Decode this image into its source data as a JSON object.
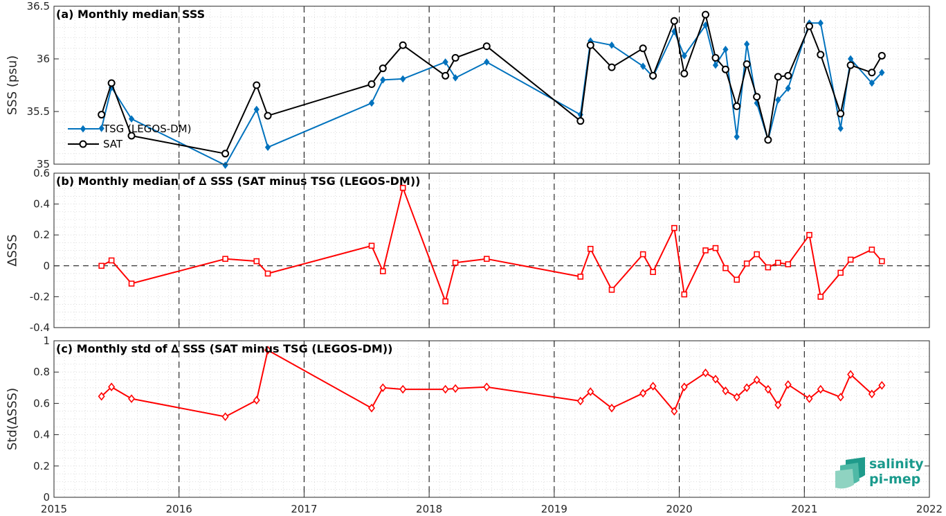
{
  "chart_data": [
    {
      "type": "line",
      "title": "(a) Monthly median SSS",
      "ylabel": "SSS (psu)",
      "xlim": [
        2015,
        2022
      ],
      "ylim": [
        35,
        36.5
      ],
      "yticks": [
        35,
        35.5,
        36,
        36.5
      ],
      "ytick_labels": [
        "35",
        "35.5",
        "36",
        "36.5"
      ],
      "grid": "dotted minor",
      "legend_position": "left",
      "series": [
        {
          "name": "TSG (LEGOS-DM)",
          "color": "#0072BD",
          "marker": "diamond-filled",
          "points": [
            [
              2015.38,
              35.34
            ],
            [
              2015.46,
              35.73
            ],
            [
              2015.62,
              35.43
            ],
            [
              2016.37,
              34.99
            ],
            [
              2016.62,
              35.52
            ],
            [
              2016.71,
              35.16
            ],
            [
              2017.54,
              35.58
            ],
            [
              2017.63,
              35.8
            ],
            [
              2017.79,
              35.81
            ],
            [
              2018.13,
              35.97
            ],
            [
              2018.21,
              35.82
            ],
            [
              2018.46,
              35.97
            ],
            [
              2019.21,
              35.47
            ],
            [
              2019.29,
              36.17
            ],
            [
              2019.46,
              36.13
            ],
            [
              2019.71,
              35.93
            ],
            [
              2019.79,
              35.83
            ],
            [
              2019.96,
              36.26
            ],
            [
              2020.04,
              36.03
            ],
            [
              2020.21,
              36.32
            ],
            [
              2020.29,
              35.94
            ],
            [
              2020.37,
              36.09
            ],
            [
              2020.46,
              35.26
            ],
            [
              2020.54,
              36.14
            ],
            [
              2020.62,
              35.58
            ],
            [
              2020.71,
              35.23
            ],
            [
              2020.79,
              35.61
            ],
            [
              2020.87,
              35.72
            ],
            [
              2021.04,
              36.34
            ],
            [
              2021.13,
              36.34
            ],
            [
              2021.29,
              35.34
            ],
            [
              2021.37,
              36.0
            ],
            [
              2021.54,
              35.77
            ],
            [
              2021.62,
              35.87
            ]
          ]
        },
        {
          "name": "SAT",
          "color": "#000000",
          "marker": "circle-open",
          "points": [
            [
              2015.38,
              35.47
            ],
            [
              2015.46,
              35.77
            ],
            [
              2015.62,
              35.27
            ],
            [
              2016.37,
              35.1
            ],
            [
              2016.62,
              35.75
            ],
            [
              2016.71,
              35.46
            ],
            [
              2017.54,
              35.76
            ],
            [
              2017.63,
              35.91
            ],
            [
              2017.79,
              36.13
            ],
            [
              2018.13,
              35.84
            ],
            [
              2018.21,
              36.01
            ],
            [
              2018.46,
              36.12
            ],
            [
              2019.21,
              35.41
            ],
            [
              2019.29,
              36.13
            ],
            [
              2019.46,
              35.92
            ],
            [
              2019.71,
              36.1
            ],
            [
              2019.79,
              35.84
            ],
            [
              2019.96,
              36.36
            ],
            [
              2020.04,
              35.86
            ],
            [
              2020.21,
              36.42
            ],
            [
              2020.29,
              36.01
            ],
            [
              2020.37,
              35.9
            ],
            [
              2020.46,
              35.55
            ],
            [
              2020.54,
              35.95
            ],
            [
              2020.62,
              35.64
            ],
            [
              2020.71,
              35.23
            ],
            [
              2020.79,
              35.83
            ],
            [
              2020.87,
              35.84
            ],
            [
              2021.04,
              36.31
            ],
            [
              2021.13,
              36.04
            ],
            [
              2021.29,
              35.48
            ],
            [
              2021.37,
              35.94
            ],
            [
              2021.54,
              35.87
            ],
            [
              2021.62,
              36.03
            ]
          ]
        }
      ]
    },
    {
      "type": "line",
      "title": "(b) Monthly median of ∆ SSS (SAT minus TSG (LEGOS-DM))",
      "ylabel": "∆SSS",
      "xlim": [
        2015,
        2022
      ],
      "ylim": [
        -0.4,
        0.6
      ],
      "yticks": [
        -0.4,
        -0.2,
        0,
        0.2,
        0.4,
        0.6
      ],
      "ytick_labels": [
        "-0.4",
        "-0.2",
        "0",
        "0.2",
        "0.4",
        "0.6"
      ],
      "grid": "dotted minor",
      "zero_line": "dashed",
      "series": [
        {
          "color": "#FF0000",
          "marker": "square-open",
          "points": [
            [
              2015.38,
              0.0
            ],
            [
              2015.46,
              0.035
            ],
            [
              2015.62,
              -0.115
            ],
            [
              2016.37,
              0.045
            ],
            [
              2016.62,
              0.03
            ],
            [
              2016.71,
              -0.05
            ],
            [
              2017.54,
              0.13
            ],
            [
              2017.63,
              -0.035
            ],
            [
              2017.79,
              0.505
            ],
            [
              2018.13,
              -0.23
            ],
            [
              2018.21,
              0.02
            ],
            [
              2018.46,
              0.045
            ],
            [
              2019.21,
              -0.07
            ],
            [
              2019.29,
              0.11
            ],
            [
              2019.46,
              -0.155
            ],
            [
              2019.71,
              0.075
            ],
            [
              2019.79,
              -0.04
            ],
            [
              2019.96,
              0.245
            ],
            [
              2020.04,
              -0.185
            ],
            [
              2020.21,
              0.1
            ],
            [
              2020.29,
              0.115
            ],
            [
              2020.37,
              -0.015
            ],
            [
              2020.46,
              -0.09
            ],
            [
              2020.54,
              0.015
            ],
            [
              2020.62,
              0.075
            ],
            [
              2020.71,
              -0.01
            ],
            [
              2020.79,
              0.02
            ],
            [
              2020.87,
              0.01
            ],
            [
              2021.04,
              0.2
            ],
            [
              2021.13,
              -0.2
            ],
            [
              2021.29,
              -0.045
            ],
            [
              2021.37,
              0.04
            ],
            [
              2021.54,
              0.105
            ],
            [
              2021.62,
              0.03
            ]
          ]
        }
      ]
    },
    {
      "type": "line",
      "title": "(c) Monthly std of ∆ SSS (SAT minus TSG (LEGOS-DM))",
      "ylabel": "Std(∆SSS)",
      "xlabel": "",
      "xlim": [
        2015,
        2022
      ],
      "xticks": [
        2015,
        2016,
        2017,
        2018,
        2019,
        2020,
        2021,
        2022
      ],
      "xtick_labels": [
        "2015",
        "2016",
        "2017",
        "2018",
        "2019",
        "2020",
        "2021",
        "2022"
      ],
      "ylim": [
        0,
        1
      ],
      "yticks": [
        0,
        0.2,
        0.4,
        0.6,
        0.8,
        1
      ],
      "ytick_labels": [
        "0",
        "0.2",
        "0.4",
        "0.6",
        "0.8",
        "1"
      ],
      "grid": "dotted minor",
      "series": [
        {
          "color": "#FF0000",
          "marker": "diamond-open",
          "points": [
            [
              2015.38,
              0.645
            ],
            [
              2015.46,
              0.705
            ],
            [
              2015.62,
              0.63
            ],
            [
              2016.37,
              0.515
            ],
            [
              2016.62,
              0.62
            ],
            [
              2016.71,
              0.94
            ],
            [
              2017.54,
              0.57
            ],
            [
              2017.63,
              0.7
            ],
            [
              2017.79,
              0.69
            ],
            [
              2018.13,
              0.69
            ],
            [
              2018.21,
              0.695
            ],
            [
              2018.46,
              0.705
            ],
            [
              2019.21,
              0.615
            ],
            [
              2019.29,
              0.675
            ],
            [
              2019.46,
              0.57
            ],
            [
              2019.71,
              0.665
            ],
            [
              2019.79,
              0.71
            ],
            [
              2019.96,
              0.55
            ],
            [
              2020.04,
              0.705
            ],
            [
              2020.21,
              0.795
            ],
            [
              2020.29,
              0.755
            ],
            [
              2020.37,
              0.68
            ],
            [
              2020.46,
              0.64
            ],
            [
              2020.54,
              0.7
            ],
            [
              2020.62,
              0.75
            ],
            [
              2020.71,
              0.69
            ],
            [
              2020.79,
              0.59
            ],
            [
              2020.87,
              0.72
            ],
            [
              2021.04,
              0.63
            ],
            [
              2021.13,
              0.69
            ],
            [
              2021.29,
              0.64
            ],
            [
              2021.37,
              0.785
            ],
            [
              2021.54,
              0.66
            ],
            [
              2021.62,
              0.715
            ]
          ]
        }
      ]
    }
  ],
  "logo": {
    "line1": "salinity",
    "line2": "pi-mep",
    "color": "#1a9a8c"
  }
}
